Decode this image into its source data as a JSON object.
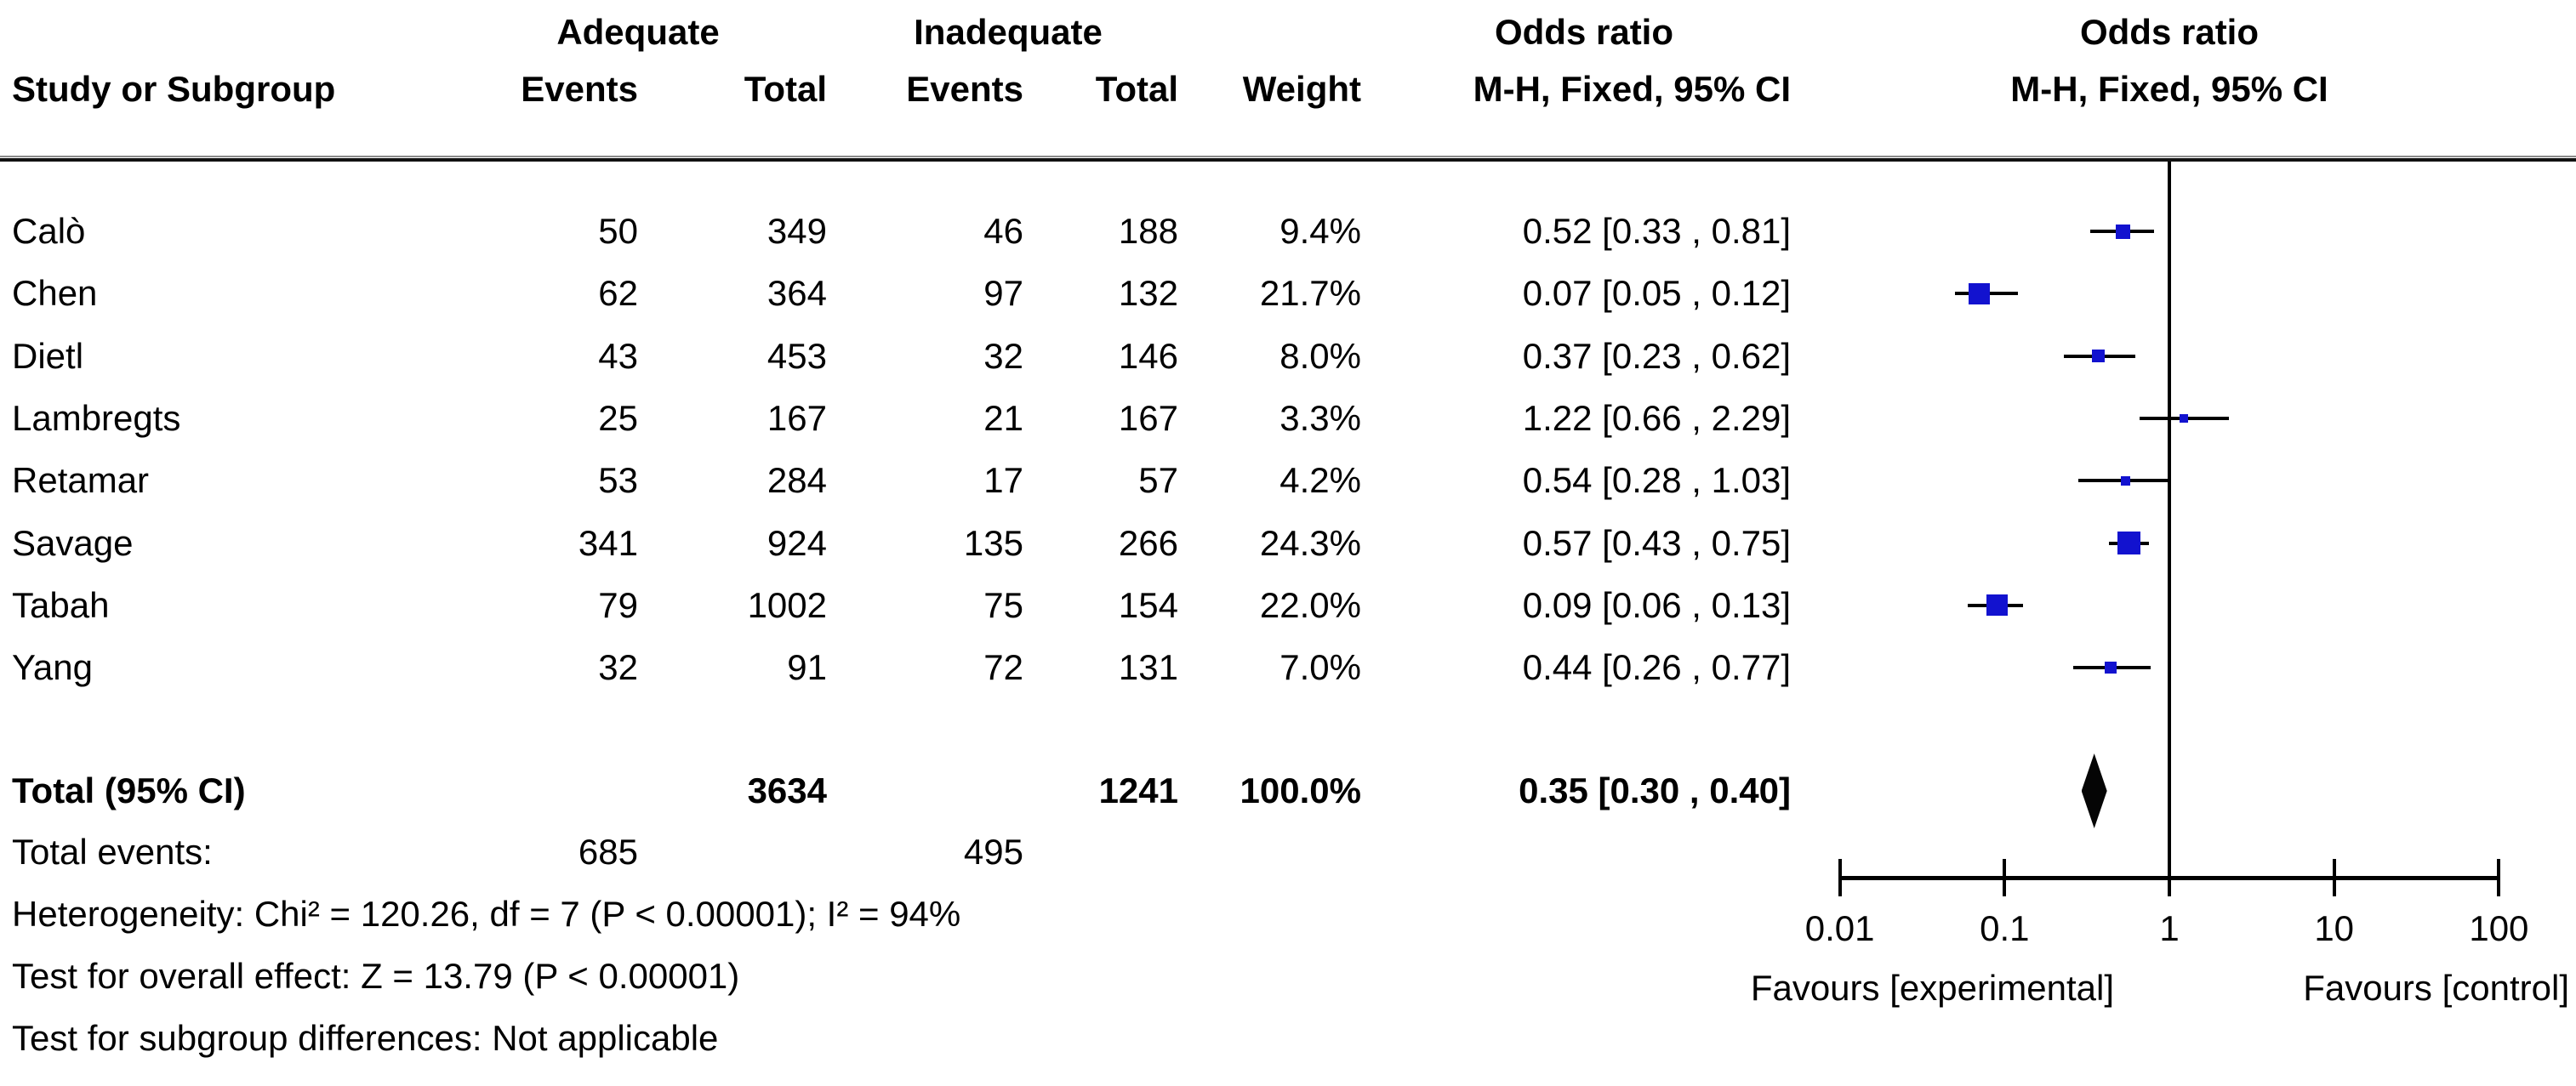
{
  "header": {
    "group_adequate": "Adequate",
    "group_inadequate": "Inadequate",
    "or_left_line1": "Odds ratio",
    "or_left_line2": "M-H, Fixed, 95% CI",
    "or_right_line1": "Odds ratio",
    "or_right_line2": "M-H, Fixed, 95% CI",
    "col_study": "Study or Subgroup",
    "col_events_adequate": "Events",
    "col_total_adequate": "Total",
    "col_events_inadequate": "Events",
    "col_total_inadequate": "Total",
    "col_weight": "Weight"
  },
  "studies": [
    {
      "name": "Calò",
      "events1": "50",
      "total1": "349",
      "events2": "46",
      "total2": "188",
      "weight": "9.4%",
      "ci": "0.52 [0.33 , 0.81]",
      "or": 0.52,
      "lo": 0.33,
      "hi": 0.81
    },
    {
      "name": "Chen",
      "events1": "62",
      "total1": "364",
      "events2": "97",
      "total2": "132",
      "weight": "21.7%",
      "ci": "0.07 [0.05 , 0.12]",
      "or": 0.07,
      "lo": 0.05,
      "hi": 0.12
    },
    {
      "name": "Dietl",
      "events1": "43",
      "total1": "453",
      "events2": "32",
      "total2": "146",
      "weight": "8.0%",
      "ci": "0.37 [0.23 , 0.62]",
      "or": 0.37,
      "lo": 0.23,
      "hi": 0.62
    },
    {
      "name": "Lambregts",
      "events1": "25",
      "total1": "167",
      "events2": "21",
      "total2": "167",
      "weight": "3.3%",
      "ci": "1.22 [0.66 , 2.29]",
      "or": 1.22,
      "lo": 0.66,
      "hi": 2.29
    },
    {
      "name": "Retamar",
      "events1": "53",
      "total1": "284",
      "events2": "17",
      "total2": "57",
      "weight": "4.2%",
      "ci": "0.54 [0.28 , 1.03]",
      "or": 0.54,
      "lo": 0.28,
      "hi": 1.03
    },
    {
      "name": "Savage",
      "events1": "341",
      "total1": "924",
      "events2": "135",
      "total2": "266",
      "weight": "24.3%",
      "ci": "0.57 [0.43 , 0.75]",
      "or": 0.57,
      "lo": 0.43,
      "hi": 0.75
    },
    {
      "name": "Tabah",
      "events1": "79",
      "total1": "1002",
      "events2": "75",
      "total2": "154",
      "weight": "22.0%",
      "ci": "0.09 [0.06 , 0.13]",
      "or": 0.09,
      "lo": 0.06,
      "hi": 0.13
    },
    {
      "name": "Yang",
      "events1": "32",
      "total1": "91",
      "events2": "72",
      "total2": "131",
      "weight": "7.0%",
      "ci": "0.44 [0.26 , 0.77]",
      "or": 0.44,
      "lo": 0.26,
      "hi": 0.77
    }
  ],
  "total_row": {
    "label": "Total (95% CI)",
    "total1": "3634",
    "total2": "1241",
    "weight": "100.0%",
    "ci": "0.35 [0.30 , 0.40]",
    "or": 0.35,
    "lo": 0.3,
    "hi": 0.4
  },
  "total_events": {
    "label": "Total events:",
    "adequate": "685",
    "inadequate": "495"
  },
  "footnotes": {
    "heterogeneity": "Heterogeneity: Chi² = 120.26, df = 7 (P < 0.00001); I² = 94%",
    "overall_effect": "Test for overall effect: Z = 13.79 (P < 0.00001)",
    "subgroup": "Test for subgroup differences: Not applicable"
  },
  "axis": {
    "tick_labels": [
      "0.01",
      "0.1",
      "1",
      "10",
      "100"
    ],
    "tick_values": [
      0.01,
      0.1,
      1,
      10,
      100
    ],
    "favours_left": "Favours [experimental]",
    "favours_right": "Favours [control]"
  },
  "colors": {
    "marker_blue": "#1212cf",
    "diamond_black": "#050505",
    "line_black": "#000000"
  },
  "chart_data": {
    "type": "scatter",
    "title": "Forest plot — Odds ratio, M-H, Fixed, 95% CI",
    "x_scale": "log",
    "x_ticks": [
      0.01,
      0.1,
      1,
      10,
      100
    ],
    "xlim": [
      0.01,
      100
    ],
    "categories": [
      "Calò",
      "Chen",
      "Dietl",
      "Lambregts",
      "Retamar",
      "Savage",
      "Tabah",
      "Yang"
    ],
    "series": [
      {
        "name": "Odds ratio",
        "values": [
          0.52,
          0.07,
          0.37,
          1.22,
          0.54,
          0.57,
          0.09,
          0.44
        ]
      },
      {
        "name": "CI lower",
        "values": [
          0.33,
          0.05,
          0.23,
          0.66,
          0.28,
          0.43,
          0.06,
          0.26
        ]
      },
      {
        "name": "CI upper",
        "values": [
          0.81,
          0.12,
          0.62,
          2.29,
          1.03,
          0.75,
          0.13,
          0.77
        ]
      },
      {
        "name": "Weight %",
        "values": [
          9.4,
          21.7,
          8.0,
          3.3,
          4.2,
          24.3,
          22.0,
          7.0
        ]
      }
    ],
    "total": {
      "label": "Total (95% CI)",
      "or": 0.35,
      "ci_lower": 0.3,
      "ci_upper": 0.4,
      "weight_pct": 100.0
    },
    "annotations": [
      "Favours [experimental]",
      "Favours [control]"
    ],
    "legend_position": "none",
    "grid": false
  }
}
